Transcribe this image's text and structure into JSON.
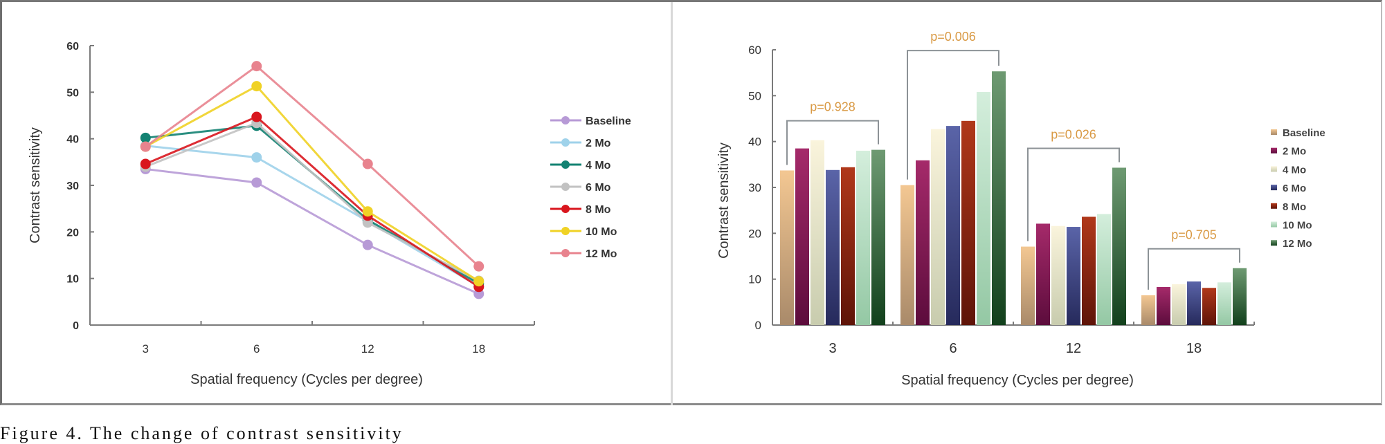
{
  "caption": "Figure 4. The change of contrast sensitivity",
  "chart_data": [
    {
      "type": "line",
      "title": "",
      "xlabel": "Spatial frequency (Cycles per degree)",
      "ylabel": "Contrast sensitivity",
      "categories": [
        "3",
        "6",
        "12",
        "18"
      ],
      "yticks": [
        "0",
        "10",
        "20",
        "30",
        "40",
        "50",
        "60"
      ],
      "ylim": [
        0,
        60
      ],
      "legend_position": "right",
      "grid": false,
      "series": [
        {
          "name": "Baseline",
          "color": "#b79ad6",
          "values": [
            33.5,
            30.6,
            17.2,
            6.7
          ]
        },
        {
          "name": "2 Mo",
          "color": "#9fd2ea",
          "values": [
            38.5,
            36.0,
            22.3,
            8.3
          ]
        },
        {
          "name": "4 Mo",
          "color": "#138272",
          "values": [
            40.2,
            42.8,
            22.6,
            8.9
          ]
        },
        {
          "name": "6 Mo",
          "color": "#c2c2c2",
          "values": [
            34.0,
            43.4,
            22.0,
            9.5
          ]
        },
        {
          "name": "8 Mo",
          "color": "#d9161e",
          "values": [
            34.6,
            44.7,
            23.5,
            8.2
          ]
        },
        {
          "name": "10 Mo",
          "color": "#f0d225",
          "values": [
            38.3,
            51.3,
            24.4,
            9.4
          ]
        },
        {
          "name": "12 Mo",
          "color": "#e8838e",
          "values": [
            38.3,
            55.6,
            34.6,
            12.6
          ]
        }
      ]
    },
    {
      "type": "bar",
      "title": "",
      "xlabel": "Spatial frequency (Cycles per degree)",
      "ylabel": "Contrast sensitivity",
      "categories": [
        "3",
        "6",
        "12",
        "18"
      ],
      "yticks": [
        "0",
        "10",
        "20",
        "30",
        "40",
        "50",
        "60"
      ],
      "ylim": [
        0,
        60
      ],
      "legend_position": "right",
      "grid": false,
      "series": [
        {
          "name": "Baseline",
          "color": "#f3c792",
          "color2": "#a98a6a",
          "values": [
            33.7,
            30.5,
            17.1,
            6.5
          ]
        },
        {
          "name": "2 Mo",
          "color": "#a52a6a",
          "color2": "#5c0c3c",
          "values": [
            38.5,
            35.9,
            22.1,
            8.3
          ]
        },
        {
          "name": "4 Mo",
          "color": "#faf4dc",
          "color2": "#c8ccae",
          "values": [
            40.3,
            42.7,
            21.6,
            8.9
          ]
        },
        {
          "name": "6 Mo",
          "color": "#5a64a8",
          "color2": "#262a5c",
          "values": [
            33.8,
            43.4,
            21.4,
            9.5
          ]
        },
        {
          "name": "8 Mo",
          "color": "#b0381a",
          "color2": "#5e1408",
          "values": [
            34.4,
            44.5,
            23.6,
            8.1
          ]
        },
        {
          "name": "10 Mo",
          "color": "#d4eedc",
          "color2": "#94c8a4",
          "values": [
            38.0,
            50.8,
            24.2,
            9.3
          ]
        },
        {
          "name": "12 Mo",
          "color": "#6e9a72",
          "color2": "#12401c",
          "values": [
            38.2,
            55.3,
            34.3,
            12.4
          ]
        }
      ],
      "annotations": [
        {
          "category": "3",
          "text": "p=0.928"
        },
        {
          "category": "6",
          "text": "p=0.006"
        },
        {
          "category": "12",
          "text": "p=0.026"
        },
        {
          "category": "18",
          "text": "p=0.705"
        }
      ],
      "annotation_color": "#d99a45"
    }
  ]
}
